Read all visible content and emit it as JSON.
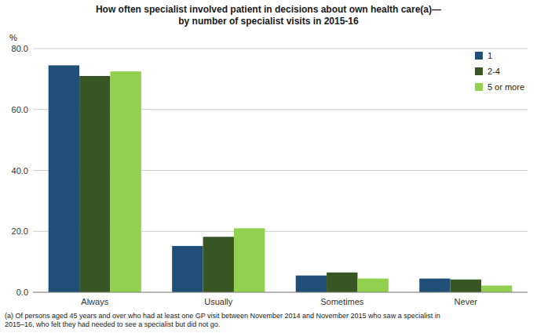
{
  "chart_data": {
    "type": "bar",
    "title": "How often specialist involved patient in decisions about own health care(a)—\nby number of specialist visits in 2015-16",
    "categories": [
      "Always",
      "Usually",
      "Sometimes",
      "Never"
    ],
    "series": [
      {
        "name": "1",
        "color": "#1F4E79",
        "values": [
          74.5,
          15.2,
          5.5,
          4.5
        ]
      },
      {
        "name": "2-4",
        "color": "#375623",
        "values": [
          71.0,
          18.2,
          6.5,
          4.2
        ]
      },
      {
        "name": "5 or more",
        "color": "#92D050",
        "values": [
          72.5,
          21.0,
          4.5,
          2.2
        ]
      }
    ],
    "ylabel": "%",
    "ylim": [
      0,
      80
    ],
    "yticks": [
      {
        "value": 0,
        "label": "0.0"
      },
      {
        "value": 20,
        "label": "20.0"
      },
      {
        "value": 40,
        "label": "40.0"
      },
      {
        "value": 60,
        "label": "60.0"
      },
      {
        "value": 80,
        "label": "80.0"
      }
    ],
    "grid": true,
    "legend": "upper right",
    "annotations": [
      "(a) Of persons aged 45 years and over who had at least one GP visit between November 2014 and November 2015  who saw a specialist in\n2015–16, who felt they had needed to see a specialist but did not go."
    ]
  }
}
